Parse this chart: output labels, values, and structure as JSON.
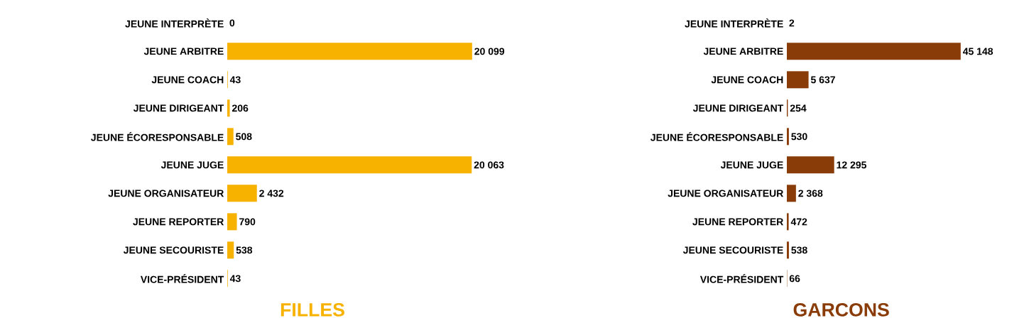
{
  "chart_data": [
    {
      "type": "bar",
      "orientation": "horizontal",
      "title": "FILLES",
      "color": "#f7b200",
      "categories": [
        "JEUNE INTERPRÈTE",
        "JEUNE ARBITRE",
        "JEUNE COACH",
        "JEUNE DIRIGEANT",
        "JEUNE ÉCORESPONSABLE",
        "JEUNE JUGE",
        "JEUNE ORGANISATEUR",
        "JEUNE REPORTER",
        "JEUNE SECOURISTE",
        "VICE-PRÉSIDENT"
      ],
      "values": [
        0,
        20099,
        43,
        206,
        508,
        20063,
        2432,
        790,
        538,
        43
      ],
      "value_labels": [
        "0",
        "20 099",
        "43",
        "206",
        "508",
        "20 063",
        "2 432",
        "790",
        "538",
        "43"
      ]
    },
    {
      "type": "bar",
      "orientation": "horizontal",
      "title": "GARCONS",
      "color": "#8a3c08",
      "categories": [
        "JEUNE INTERPRÈTE",
        "JEUNE ARBITRE",
        "JEUNE COACH",
        "JEUNE DIRIGEANT",
        "JEUNE ÉCORESPONSABLE",
        "JEUNE JUGE",
        "JEUNE ORGANISATEUR",
        "JEUNE REPORTER",
        "JEUNE SECOURISTE",
        "VICE-PRÉSIDENT"
      ],
      "values": [
        2,
        45148,
        5637,
        254,
        530,
        12295,
        2368,
        472,
        538,
        66
      ],
      "value_labels": [
        "2",
        "45 148",
        "5 637",
        "254",
        "530",
        "12 295",
        "2 368",
        "472",
        "538",
        "66"
      ]
    }
  ]
}
